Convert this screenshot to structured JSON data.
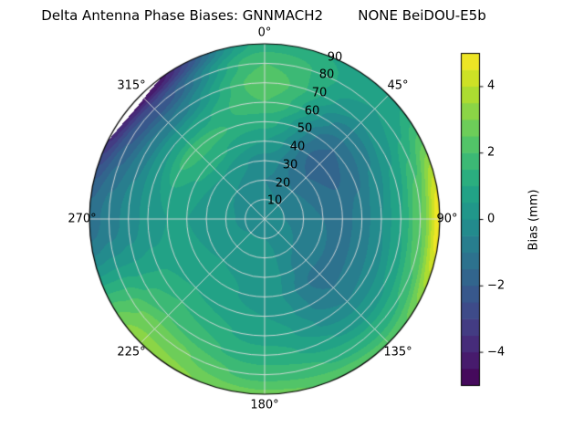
{
  "title": "Delta Antenna Phase Biases: GNNMACH2        NONE BeiDOU-E5b",
  "chart_data": {
    "type": "heatmap",
    "subtype": "polar_contour",
    "title": "Delta Antenna Phase Biases: GNNMACH2        NONE BeiDOU-E5b",
    "theta_labels": [
      "0°",
      "45°",
      "90°",
      "135°",
      "180°",
      "225°",
      "270°",
      "315°"
    ],
    "r_labels": [
      "10",
      "20",
      "30",
      "40",
      "50",
      "60",
      "70",
      "80",
      "90"
    ],
    "rlabel_position_deg": 22.5,
    "theta_zero": "top",
    "theta_direction": "clockwise",
    "azimuth_deg": [
      0,
      45,
      90,
      135,
      180,
      225,
      270,
      315
    ],
    "zenith_deg": [
      0,
      10,
      20,
      30,
      40,
      50,
      60,
      70,
      80,
      90
    ],
    "values_mm": [
      [
        -0.3,
        -0.4,
        -0.5,
        -0.2,
        0.5,
        1.2,
        2.0,
        2.3,
        2.0,
        1.2
      ],
      [
        -0.3,
        -0.5,
        -1.0,
        -1.5,
        -1.8,
        -1.5,
        -0.8,
        0.0,
        0.5,
        0.8
      ],
      [
        -0.3,
        -0.5,
        -0.8,
        -1.0,
        -1.2,
        -0.8,
        0.0,
        1.0,
        2.5,
        5.0
      ],
      [
        -0.3,
        -0.2,
        -0.5,
        -0.8,
        -1.2,
        -1.0,
        -0.5,
        0.3,
        1.2,
        2.2
      ],
      [
        -0.3,
        0.0,
        0.2,
        0.3,
        0.3,
        0.5,
        0.8,
        1.2,
        1.8,
        2.6
      ],
      [
        -0.3,
        0.0,
        0.3,
        0.5,
        0.8,
        1.0,
        1.5,
        2.0,
        2.8,
        3.3
      ],
      [
        -0.3,
        -0.1,
        0.1,
        0.3,
        0.5,
        0.5,
        0.2,
        -0.3,
        -0.8,
        -1.3
      ],
      [
        -0.3,
        -0.3,
        0.0,
        0.5,
        1.2,
        1.8,
        0.5,
        -1.0,
        -2.5,
        -4.8
      ]
    ],
    "levels": {
      "min": -5,
      "max": 5,
      "step": 0.5
    },
    "colorbar": {
      "label": "Bias (mm)",
      "ticks": [
        "4",
        "2",
        "0",
        "−2",
        "−4"
      ],
      "tick_values": [
        4,
        2,
        0,
        -2,
        -4
      ],
      "vmin": -5,
      "vmax": 5
    },
    "colormap": {
      "name": "viridis",
      "anchors": [
        "#440154",
        "#482475",
        "#414487",
        "#355f8d",
        "#2a788e",
        "#21918c",
        "#22a884",
        "#44bf70",
        "#7ad151",
        "#bddf26",
        "#fde725"
      ]
    },
    "grid_color": "#dcdcdc",
    "outline_color": "#000000"
  }
}
